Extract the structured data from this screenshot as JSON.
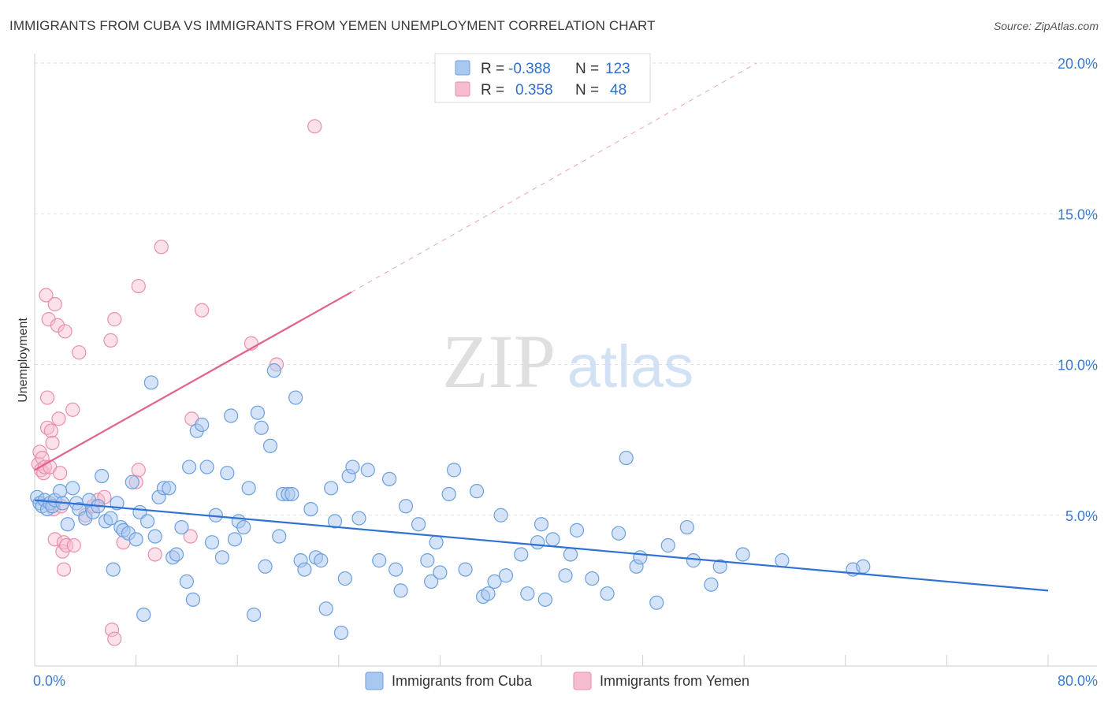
{
  "title": "IMMIGRANTS FROM CUBA VS IMMIGRANTS FROM YEMEN UNEMPLOYMENT CORRELATION CHART",
  "source": "Source: ZipAtlas.com",
  "watermark": {
    "zip": "ZIP",
    "atlas": "atlas"
  },
  "colors": {
    "cuba_fill": "#a9c8f0",
    "cuba_stroke": "#6a9fe0",
    "cuba_line": "#2f72d3",
    "yemen_fill": "#f6bcd0",
    "yemen_stroke": "#ea8eae",
    "yemen_line": "#e2628f",
    "tick_label": "#3b78d0"
  },
  "legend_top": [
    {
      "r_label": "R = ",
      "r_value": "-0.388",
      "n_label": "N = ",
      "n_value": "123"
    },
    {
      "r_label": "R = ",
      "r_value": "0.358",
      "n_label": "N = ",
      "n_value": "48"
    }
  ],
  "chart_data": {
    "type": "scatter",
    "xlabel": "",
    "ylabel": "Unemployment",
    "xlim": [
      0,
      80
    ],
    "ylim": [
      0,
      20.5
    ],
    "x_tick_labels": [
      {
        "x": 0,
        "label": "0.0%"
      },
      {
        "x": 80,
        "label": "80.0%"
      }
    ],
    "y_tick_labels": [
      {
        "y": 5,
        "label": "5.0%"
      },
      {
        "y": 10,
        "label": "10.0%"
      },
      {
        "y": 15,
        "label": "15.0%"
      },
      {
        "y": 20,
        "label": "20.0%"
      }
    ],
    "grid": "horizontal dashed",
    "legend_position": "bottom-center",
    "series": [
      {
        "name": "Immigrants from Cuba",
        "r": -0.388,
        "n": 123,
        "trend": {
          "x0": 0,
          "y0": 5.5,
          "x1": 80,
          "y1": 2.5
        },
        "points": [
          [
            0.2,
            5.6
          ],
          [
            0.4,
            5.4
          ],
          [
            0.6,
            5.3
          ],
          [
            0.8,
            5.5
          ],
          [
            1.0,
            5.2
          ],
          [
            1.2,
            5.4
          ],
          [
            1.4,
            5.3
          ],
          [
            1.6,
            5.5
          ],
          [
            2.0,
            5.8
          ],
          [
            2.2,
            5.4
          ],
          [
            2.6,
            4.7
          ],
          [
            3.0,
            5.9
          ],
          [
            3.3,
            5.4
          ],
          [
            3.5,
            5.2
          ],
          [
            4.0,
            4.9
          ],
          [
            4.3,
            5.5
          ],
          [
            4.6,
            5.1
          ],
          [
            5.0,
            5.3
          ],
          [
            5.3,
            6.3
          ],
          [
            5.6,
            4.8
          ],
          [
            6.0,
            4.9
          ],
          [
            6.2,
            3.2
          ],
          [
            6.5,
            5.4
          ],
          [
            6.8,
            4.6
          ],
          [
            7.0,
            4.5
          ],
          [
            7.4,
            4.4
          ],
          [
            7.7,
            6.1
          ],
          [
            8.0,
            4.2
          ],
          [
            8.3,
            5.1
          ],
          [
            8.6,
            1.7
          ],
          [
            8.9,
            4.8
          ],
          [
            9.2,
            9.4
          ],
          [
            9.5,
            4.3
          ],
          [
            9.8,
            5.6
          ],
          [
            10.2,
            5.9
          ],
          [
            10.6,
            5.9
          ],
          [
            10.9,
            3.6
          ],
          [
            11.2,
            3.7
          ],
          [
            11.6,
            4.6
          ],
          [
            12.0,
            2.8
          ],
          [
            12.2,
            6.6
          ],
          [
            12.5,
            2.2
          ],
          [
            12.8,
            7.8
          ],
          [
            13.2,
            8.0
          ],
          [
            13.6,
            6.6
          ],
          [
            14.0,
            4.1
          ],
          [
            14.3,
            5.0
          ],
          [
            14.8,
            3.6
          ],
          [
            15.2,
            6.4
          ],
          [
            15.5,
            8.3
          ],
          [
            15.8,
            4.2
          ],
          [
            16.1,
            4.8
          ],
          [
            16.5,
            4.6
          ],
          [
            16.9,
            5.9
          ],
          [
            17.3,
            1.7
          ],
          [
            17.6,
            8.4
          ],
          [
            17.9,
            7.9
          ],
          [
            18.2,
            3.3
          ],
          [
            18.6,
            7.3
          ],
          [
            18.9,
            9.8
          ],
          [
            19.3,
            4.3
          ],
          [
            19.6,
            5.7
          ],
          [
            20.0,
            5.7
          ],
          [
            20.3,
            5.7
          ],
          [
            20.6,
            8.9
          ],
          [
            21.0,
            3.5
          ],
          [
            21.3,
            3.2
          ],
          [
            21.8,
            5.2
          ],
          [
            22.2,
            3.6
          ],
          [
            22.6,
            3.5
          ],
          [
            23.0,
            1.9
          ],
          [
            23.4,
            5.9
          ],
          [
            23.7,
            4.8
          ],
          [
            24.2,
            1.1
          ],
          [
            24.5,
            2.9
          ],
          [
            24.8,
            6.3
          ],
          [
            25.1,
            6.6
          ],
          [
            25.6,
            4.9
          ],
          [
            26.3,
            6.5
          ],
          [
            27.2,
            3.5
          ],
          [
            28.0,
            6.2
          ],
          [
            28.5,
            3.2
          ],
          [
            28.9,
            2.5
          ],
          [
            29.3,
            5.3
          ],
          [
            30.3,
            4.7
          ],
          [
            31.0,
            3.5
          ],
          [
            31.3,
            2.8
          ],
          [
            31.7,
            4.1
          ],
          [
            32.0,
            3.1
          ],
          [
            32.7,
            5.7
          ],
          [
            33.1,
            6.5
          ],
          [
            34.0,
            3.2
          ],
          [
            34.9,
            5.8
          ],
          [
            35.4,
            2.3
          ],
          [
            35.8,
            2.4
          ],
          [
            36.3,
            2.8
          ],
          [
            36.8,
            5.0
          ],
          [
            37.2,
            3.0
          ],
          [
            38.4,
            3.7
          ],
          [
            38.9,
            2.4
          ],
          [
            39.7,
            4.1
          ],
          [
            40.0,
            4.7
          ],
          [
            40.3,
            2.2
          ],
          [
            40.9,
            4.2
          ],
          [
            41.9,
            3.0
          ],
          [
            42.3,
            3.7
          ],
          [
            42.8,
            4.5
          ],
          [
            44.0,
            2.9
          ],
          [
            45.2,
            2.4
          ],
          [
            46.1,
            4.4
          ],
          [
            46.7,
            6.9
          ],
          [
            47.5,
            3.3
          ],
          [
            47.8,
            3.6
          ],
          [
            49.1,
            2.1
          ],
          [
            50.0,
            4.0
          ],
          [
            51.5,
            4.6
          ],
          [
            52.0,
            3.5
          ],
          [
            53.4,
            2.7
          ],
          [
            54.1,
            3.3
          ],
          [
            55.9,
            3.7
          ],
          [
            59.0,
            3.5
          ],
          [
            64.6,
            3.2
          ],
          [
            65.4,
            3.3
          ]
        ]
      },
      {
        "name": "Immigrants from Yemen",
        "r": 0.358,
        "n": 48,
        "trend": {
          "x0": 0,
          "y0": 6.5,
          "x1": 25,
          "y1": 12.4,
          "dash_x1": 57,
          "dash_y1": 20.0
        },
        "points": [
          [
            0.3,
            6.7
          ],
          [
            0.4,
            7.1
          ],
          [
            0.5,
            6.5
          ],
          [
            0.6,
            6.9
          ],
          [
            0.7,
            6.4
          ],
          [
            0.8,
            6.6
          ],
          [
            0.9,
            12.3
          ],
          [
            1.0,
            8.9
          ],
          [
            1.0,
            7.9
          ],
          [
            1.1,
            11.5
          ],
          [
            1.2,
            6.6
          ],
          [
            1.3,
            7.8
          ],
          [
            1.4,
            7.4
          ],
          [
            1.5,
            5.2
          ],
          [
            1.6,
            4.2
          ],
          [
            1.6,
            12.0
          ],
          [
            1.8,
            11.3
          ],
          [
            1.9,
            8.2
          ],
          [
            2.0,
            6.4
          ],
          [
            2.1,
            5.3
          ],
          [
            2.2,
            3.8
          ],
          [
            2.3,
            4.1
          ],
          [
            2.3,
            3.2
          ],
          [
            2.4,
            11.1
          ],
          [
            2.5,
            4.0
          ],
          [
            3.0,
            8.5
          ],
          [
            3.1,
            4.0
          ],
          [
            3.5,
            10.4
          ],
          [
            4.0,
            5.0
          ],
          [
            4.6,
            5.3
          ],
          [
            5.0,
            5.5
          ],
          [
            5.5,
            5.6
          ],
          [
            6.0,
            10.8
          ],
          [
            6.1,
            1.2
          ],
          [
            6.3,
            11.5
          ],
          [
            6.3,
            0.9
          ],
          [
            7.0,
            4.1
          ],
          [
            8.0,
            6.1
          ],
          [
            8.2,
            12.6
          ],
          [
            8.2,
            6.5
          ],
          [
            9.5,
            3.7
          ],
          [
            10.0,
            13.9
          ],
          [
            12.3,
            4.3
          ],
          [
            12.4,
            8.2
          ],
          [
            13.2,
            11.8
          ],
          [
            17.1,
            10.7
          ],
          [
            19.1,
            10.0
          ],
          [
            22.1,
            17.9
          ]
        ]
      }
    ]
  }
}
